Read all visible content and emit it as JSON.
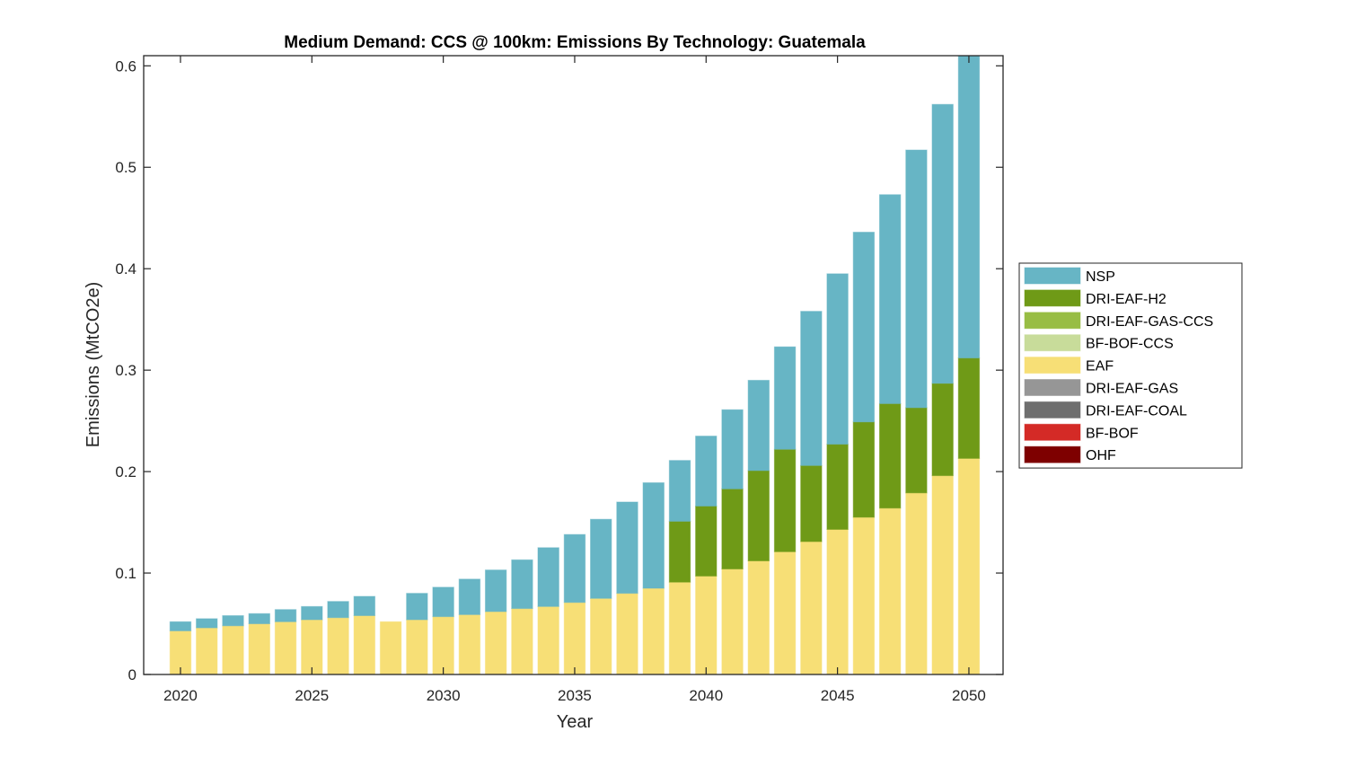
{
  "chart_data": {
    "type": "bar",
    "stacked": true,
    "title": "Medium Demand: CCS @ 100km: Emissions By Technology: Guatemala",
    "xlabel": "Year",
    "ylabel": "Emissions (MtCO2e)",
    "ylim": [
      0,
      0.61
    ],
    "xlim": [
      2018.6,
      2051.3
    ],
    "yticks": [
      0,
      0.1,
      0.2,
      0.3,
      0.4,
      0.5,
      0.6
    ],
    "ytick_labels": [
      "0",
      "0.1",
      "0.2",
      "0.3",
      "0.4",
      "0.5",
      "0.6"
    ],
    "xticks": [
      2020,
      2025,
      2030,
      2035,
      2040,
      2045,
      2050
    ],
    "xtick_labels": [
      "2020",
      "2025",
      "2030",
      "2035",
      "2040",
      "2045",
      "2050"
    ],
    "grid": false,
    "legend_position": "right",
    "categories": [
      2020,
      2021,
      2022,
      2023,
      2024,
      2025,
      2026,
      2027,
      2028,
      2029,
      2030,
      2031,
      2032,
      2033,
      2034,
      2035,
      2036,
      2037,
      2038,
      2039,
      2040,
      2041,
      2042,
      2043,
      2044,
      2045,
      2046,
      2047,
      2048,
      2049,
      2050
    ],
    "legend": [
      {
        "name": "NSP",
        "color": "#67B5C5"
      },
      {
        "name": "DRI-EAF-H2",
        "color": "#6F9A17"
      },
      {
        "name": "DRI-EAF-GAS-CCS",
        "color": "#98BD44"
      },
      {
        "name": "BF-BOF-CCS",
        "color": "#C8DC9A"
      },
      {
        "name": "EAF",
        "color": "#F7DF76"
      },
      {
        "name": "DRI-EAF-GAS",
        "color": "#969696"
      },
      {
        "name": "DRI-EAF-COAL",
        "color": "#6E6E6E"
      },
      {
        "name": "BF-BOF",
        "color": "#D42A26"
      },
      {
        "name": "OHF",
        "color": "#7E0000"
      }
    ],
    "series": [
      {
        "name": "OHF",
        "color": "#7E0000",
        "values": [
          0,
          0,
          0,
          0,
          0,
          0,
          0,
          0,
          0,
          0,
          0,
          0,
          0,
          0,
          0,
          0,
          0,
          0,
          0,
          0,
          0,
          0,
          0,
          0,
          0,
          0,
          0,
          0,
          0,
          0,
          0
        ]
      },
      {
        "name": "BF-BOF",
        "color": "#D42A26",
        "values": [
          0,
          0,
          0,
          0,
          0,
          0,
          0,
          0,
          0,
          0,
          0,
          0,
          0,
          0,
          0,
          0,
          0,
          0,
          0,
          0,
          0,
          0,
          0,
          0,
          0,
          0,
          0,
          0,
          0,
          0,
          0
        ]
      },
      {
        "name": "DRI-EAF-COAL",
        "color": "#6E6E6E",
        "values": [
          0,
          0,
          0,
          0,
          0,
          0,
          0,
          0,
          0,
          0,
          0,
          0,
          0,
          0,
          0,
          0,
          0,
          0,
          0,
          0,
          0,
          0,
          0,
          0,
          0,
          0,
          0,
          0,
          0,
          0,
          0
        ]
      },
      {
        "name": "DRI-EAF-GAS",
        "color": "#969696",
        "values": [
          0,
          0,
          0,
          0,
          0,
          0,
          0,
          0,
          0,
          0,
          0,
          0,
          0,
          0,
          0,
          0,
          0,
          0,
          0,
          0,
          0,
          0,
          0,
          0,
          0,
          0,
          0,
          0,
          0,
          0,
          0
        ]
      },
      {
        "name": "EAF",
        "color": "#F7DF76",
        "values": [
          0.043,
          0.046,
          0.048,
          0.05,
          0.052,
          0.054,
          0.056,
          0.058,
          0.052,
          0.054,
          0.057,
          0.059,
          0.062,
          0.065,
          0.067,
          0.071,
          0.075,
          0.08,
          0.085,
          0.091,
          0.097,
          0.104,
          0.112,
          0.121,
          0.131,
          0.143,
          0.155,
          0.164,
          0.179,
          0.196,
          0.213
        ]
      },
      {
        "name": "BF-BOF-CCS",
        "color": "#C8DC9A",
        "values": [
          0,
          0,
          0,
          0,
          0,
          0,
          0,
          0,
          0,
          0,
          0,
          0,
          0,
          0,
          0,
          0,
          0,
          0,
          0,
          0,
          0,
          0,
          0,
          0,
          0,
          0,
          0,
          0,
          0,
          0,
          0
        ]
      },
      {
        "name": "DRI-EAF-GAS-CCS",
        "color": "#98BD44",
        "values": [
          0,
          0,
          0,
          0,
          0,
          0,
          0,
          0,
          0,
          0,
          0,
          0,
          0,
          0,
          0,
          0,
          0,
          0,
          0,
          0,
          0,
          0,
          0,
          0,
          0,
          0,
          0,
          0,
          0,
          0,
          0
        ]
      },
      {
        "name": "DRI-EAF-H2",
        "color": "#6F9A17",
        "values": [
          0,
          0,
          0,
          0,
          0,
          0,
          0,
          0,
          0,
          0,
          0,
          0,
          0,
          0,
          0,
          0,
          0,
          0,
          0,
          0.06,
          0.069,
          0.079,
          0.089,
          0.101,
          0.075,
          0.084,
          0.094,
          0.103,
          0.084,
          0.091,
          0.099
        ]
      },
      {
        "name": "NSP",
        "color": "#67B5C5",
        "values": [
          0.009,
          0.009,
          0.01,
          0.01,
          0.012,
          0.013,
          0.016,
          0.019,
          0,
          0.026,
          0.029,
          0.035,
          0.041,
          0.048,
          0.058,
          0.067,
          0.078,
          0.09,
          0.104,
          0.06,
          0.069,
          0.078,
          0.089,
          0.101,
          0.152,
          0.168,
          0.187,
          0.206,
          0.254,
          0.275,
          0.3
        ]
      }
    ]
  }
}
